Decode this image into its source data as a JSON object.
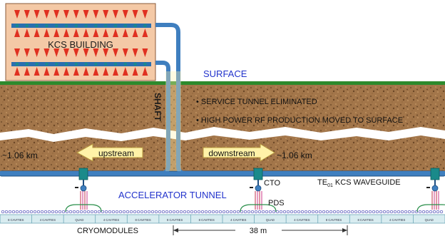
{
  "labels": {
    "building": "KCS BUILDING",
    "surface": "SURFACE",
    "shaft": "SHAFT",
    "bullet1": "• SERVICE TUNNEL ELIMINATED",
    "bullet2": "• HIGH POWER RF PRODUCTION MOVED TO SURFACE",
    "upstream": "upstream",
    "downstream": "downstream",
    "dist_left": "~1.06 km",
    "dist_right": "~1.06 km",
    "accel_tunnel": "ACCELERATOR TUNNEL",
    "cto": "CTO",
    "pds": "PDS",
    "waveguide_te": "TE",
    "waveguide_sub": "01",
    "waveguide_rest": " KCS WAVEGUIDE",
    "cryomodules": "CRYOMODULES",
    "length": "38 m"
  },
  "module_cells": [
    "8 CAVITIES",
    "4 CAVITIES",
    "QUAD",
    "4 CAVITIES",
    "8 CAVITIES",
    "8 CAVITIES",
    "8 CAVITIES",
    "4 CAVITIES",
    "QUAD",
    "4 CAVITIES",
    "8 CAVITIES",
    "8 CAVITIES",
    "4 CAVITIES",
    "QUAD"
  ],
  "colors": {
    "building_fill": "#f4c9a6",
    "klystron_red": "#e03020",
    "klystron_blue": "#2a6fb0",
    "soil": "#a3764a",
    "grass": "#2d8a2d",
    "pipe": "#3f7fbf",
    "pipe_dark": "#1f4f80",
    "box_teal": "#1a8a8a",
    "text_blue": "#2233cc",
    "arrow_fill": "#fff2a8"
  }
}
